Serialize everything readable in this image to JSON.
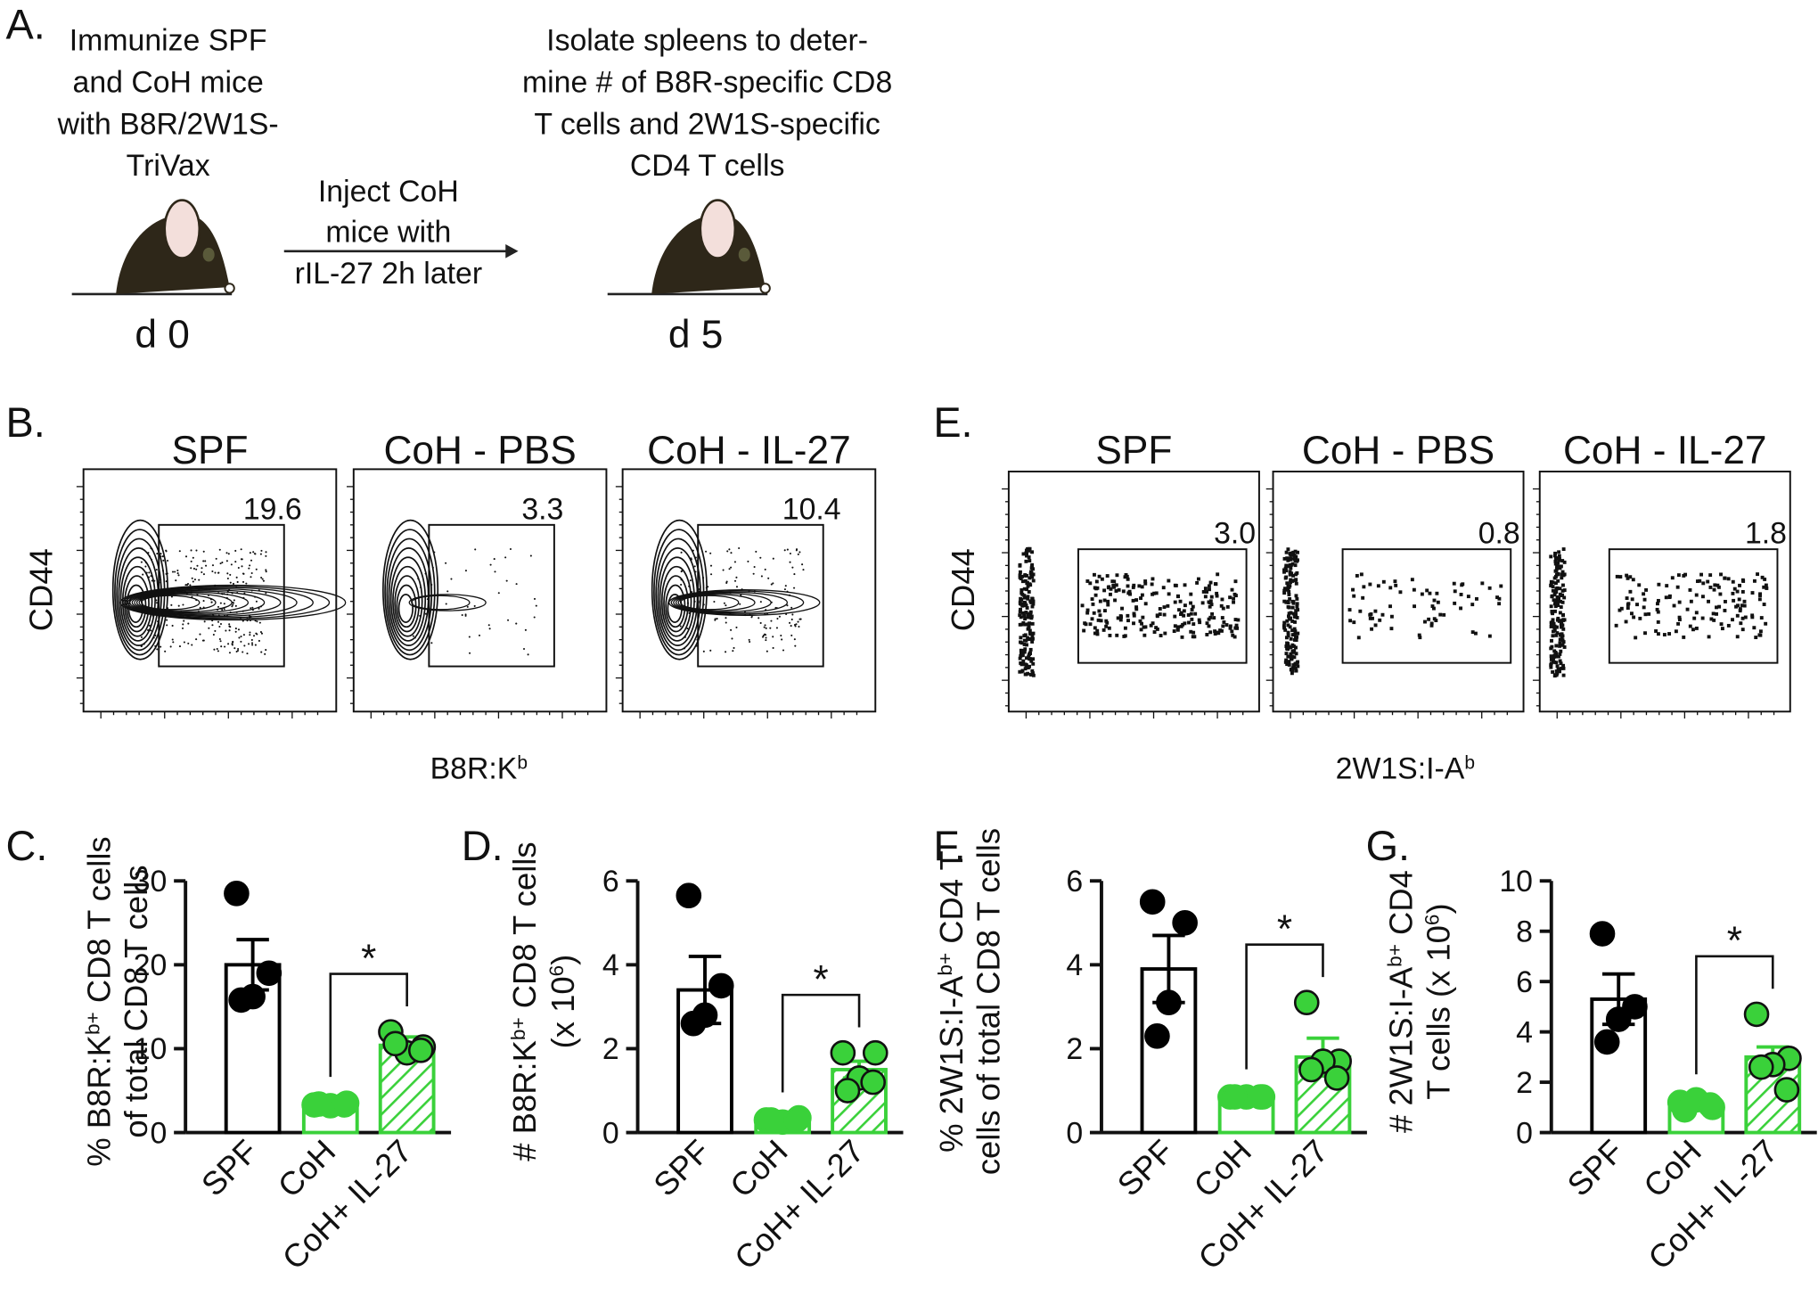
{
  "schematic": {
    "label": "A.",
    "step1": [
      "Immunize SPF",
      "and CoH mice",
      "with B8R/2W1S-",
      "TriVax"
    ],
    "step2": [
      "Inject CoH",
      "mice with",
      "rIL-27 2h later"
    ],
    "step3": [
      "Isolate spleens to deter-",
      "mine # of B8R-specific CD8",
      "T cells and 2W1S-specific",
      "CD4 T cells"
    ],
    "day1": "d 0",
    "day2": "d 5"
  },
  "flow_panels": [
    {
      "label": "B.",
      "ylabel": "CD44",
      "xlabel": [
        "B8R:K",
        "b"
      ],
      "style": "contour",
      "plots": [
        {
          "title": "SPF",
          "gate": "19.6"
        },
        {
          "title": "CoH - PBS",
          "gate": "3.3"
        },
        {
          "title": "CoH - IL-27",
          "gate": "10.4"
        }
      ]
    },
    {
      "label": "E.",
      "ylabel": "CD44",
      "xlabel": [
        "2W1S:I-A",
        "b"
      ],
      "style": "dots",
      "plots": [
        {
          "title": "SPF",
          "gate": "3.0"
        },
        {
          "title": "CoH - PBS",
          "gate": "0.8"
        },
        {
          "title": "CoH - IL-27",
          "gate": "1.8"
        }
      ]
    }
  ],
  "chart_data": [
    {
      "type": "bar",
      "panel": "C.",
      "ylabel": [
        [
          "% B8R:K",
          "b+",
          " CD8 T cells"
        ],
        [
          "of total CD8 T cells"
        ]
      ],
      "categories": [
        "SPF",
        "CoH",
        "CoH+ IL-27"
      ],
      "values": [
        20,
        3.3,
        10.4
      ],
      "errors": [
        3,
        0.3,
        1
      ],
      "points": [
        [
          28.5,
          19,
          16.2,
          15.8
        ],
        [
          3.3,
          3.5,
          3.2,
          3.4,
          3.3
        ],
        [
          12,
          10.2,
          9.5,
          10.6,
          9.8
        ]
      ],
      "colors": [
        "#000000",
        "#3ad13a",
        "#3ad13a"
      ],
      "hatch": [
        false,
        false,
        true
      ],
      "ylim": [
        0,
        30
      ],
      "yticks": [
        0,
        10,
        20,
        30
      ],
      "significance": {
        "label": "*",
        "between": [
          1,
          2
        ]
      }
    },
    {
      "type": "bar",
      "panel": "D.",
      "ylabel": [
        [
          "# B8R:K",
          "b+",
          " CD8 T cells"
        ],
        [
          "(x 10",
          "6",
          ")"
        ]
      ],
      "categories": [
        "SPF",
        "CoH",
        "CoH+ IL-27"
      ],
      "values": [
        3.4,
        0.3,
        1.5
      ],
      "errors": [
        0.8,
        0.05,
        0.2
      ],
      "points": [
        [
          5.65,
          3.5,
          2.8,
          2.6
        ],
        [
          0.3,
          0.35,
          0.25,
          0.3,
          0.3
        ],
        [
          1.9,
          1.9,
          1.3,
          1.0,
          1.2
        ]
      ],
      "colors": [
        "#000000",
        "#3ad13a",
        "#3ad13a"
      ],
      "hatch": [
        false,
        false,
        true
      ],
      "ylim": [
        0,
        6
      ],
      "yticks": [
        0,
        2,
        4,
        6
      ],
      "significance": {
        "label": "*",
        "between": [
          1,
          2
        ]
      }
    },
    {
      "type": "bar",
      "panel": "F.",
      "ylabel": [
        [
          "% 2W1S:I-A",
          "b+",
          " CD4 T"
        ],
        [
          "cells of total CD8 T cells"
        ]
      ],
      "categories": [
        "SPF",
        "CoH",
        "CoH+ IL-27"
      ],
      "values": [
        3.9,
        0.85,
        1.8
      ],
      "errors": [
        0.8,
        0.05,
        0.45
      ],
      "points": [
        [
          5.5,
          5.0,
          3.1,
          2.3
        ],
        [
          0.85,
          0.85,
          0.85,
          0.85,
          0.85
        ],
        [
          3.1,
          1.7,
          1.7,
          1.5,
          1.3
        ]
      ],
      "colors": [
        "#000000",
        "#3ad13a",
        "#3ad13a"
      ],
      "hatch": [
        false,
        false,
        true
      ],
      "ylim": [
        0,
        6
      ],
      "yticks": [
        0,
        2,
        4,
        6
      ],
      "significance": {
        "label": "*",
        "between": [
          1,
          2
        ]
      }
    },
    {
      "type": "bar",
      "panel": "G.",
      "ylabel": [
        [
          "# 2W1S:I-A",
          "b+",
          " CD4"
        ],
        [
          "T cells (x 10",
          "6",
          ")"
        ]
      ],
      "categories": [
        "SPF",
        "CoH",
        "CoH+ IL-27"
      ],
      "values": [
        5.3,
        1.1,
        3.0
      ],
      "errors": [
        1.0,
        0.1,
        0.4
      ],
      "points": [
        [
          7.9,
          5.0,
          4.5,
          3.6
        ],
        [
          1.2,
          1.0,
          1.3,
          0.9,
          1.1
        ],
        [
          4.7,
          2.95,
          2.7,
          2.6,
          1.7
        ]
      ],
      "colors": [
        "#000000",
        "#3ad13a",
        "#3ad13a"
      ],
      "hatch": [
        false,
        false,
        true
      ],
      "ylim": [
        0,
        10
      ],
      "yticks": [
        0,
        2,
        4,
        6,
        8,
        10
      ],
      "significance": {
        "label": "*",
        "between": [
          1,
          2
        ]
      }
    }
  ]
}
